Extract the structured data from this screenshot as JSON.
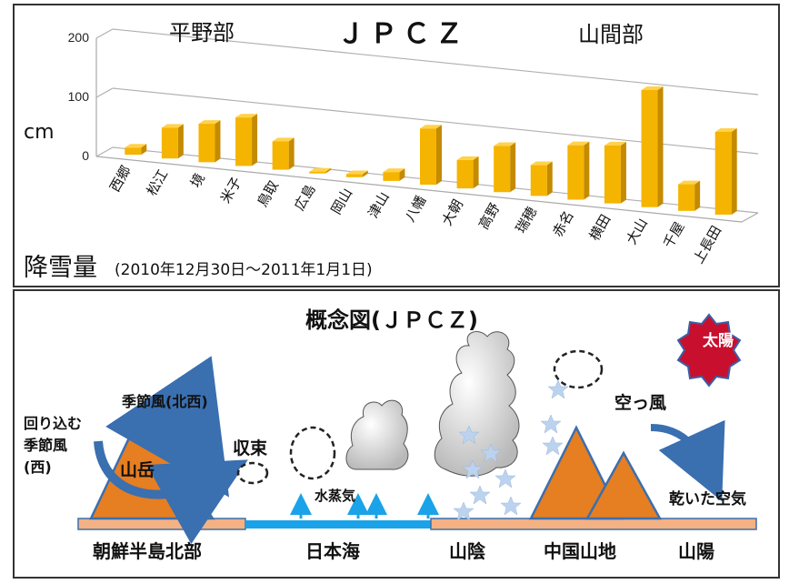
{
  "chart": {
    "title": "ＪＰＣＺ",
    "left_header": "平野部",
    "right_header": "山間部",
    "y_unit": "cm",
    "caption_main": "降雪量",
    "caption_period": "(2010年12月30日～2011年1月1日)"
  },
  "chart_data": {
    "type": "bar",
    "title": "ＪＰＣＺ",
    "ylabel": "cm",
    "ylim": [
      0,
      200
    ],
    "yticks": [
      "0",
      "100",
      "200"
    ],
    "categories": [
      "西郷",
      "松江",
      "境",
      "米子",
      "鳥取",
      "広島",
      "岡山",
      "津山",
      "八幡",
      "大朝",
      "高野",
      "瑞穂",
      "赤名",
      "横田",
      "大山",
      "千屋",
      "上長田"
    ],
    "values": [
      12,
      52,
      65,
      82,
      48,
      3,
      5,
      15,
      95,
      48,
      78,
      52,
      92,
      98,
      198,
      45,
      140
    ],
    "bar_color": "#f5b400"
  },
  "diagram": {
    "title": "概念図(ＪＰＣＺ)",
    "sun_label": "太陽",
    "monsoon_nw": "季節風(北西)",
    "wrap_monsoon": "回り込む季節風(西)",
    "wrap_lines": [
      "回り込む",
      "季節風",
      "(西)"
    ],
    "mountains_label": "山岳",
    "convergence": "収束",
    "vapor": "水蒸気",
    "dry_wind": "空っ風",
    "dry_air": "乾いた空気",
    "regions": [
      "朝鮮半島北部",
      "日本海",
      "山陰",
      "中国山地",
      "山陽"
    ],
    "colors": {
      "mountain": "#e67e22",
      "sea": "#1aa3e8",
      "arrow": "#3a6fb0",
      "star": "#bcd3ef",
      "sun": "#c8102e"
    }
  }
}
